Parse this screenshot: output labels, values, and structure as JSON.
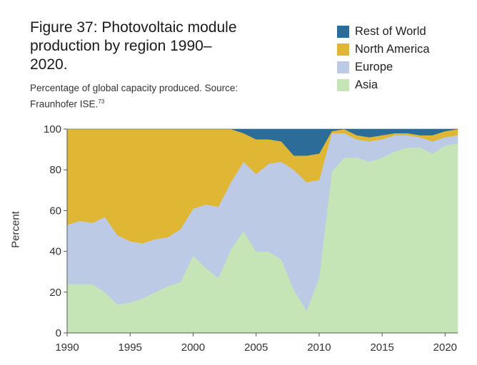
{
  "title": "Figure 37: Photovoltaic module production by region 1990–2020.",
  "subtitle": "Percentage of global capacity produced. Source: Fraunhofer ISE.",
  "subtitle_ref": "73",
  "chart_data": {
    "type": "area",
    "stacked": true,
    "ylabel": "Percent",
    "xlabel": "",
    "xlim": [
      1990,
      2021
    ],
    "ylim": [
      0,
      100
    ],
    "xticks": [
      "1990",
      "1995",
      "2000",
      "2005",
      "2010",
      "2015",
      "2020"
    ],
    "yticks": [
      "0",
      "20",
      "40",
      "60",
      "80",
      "100"
    ],
    "grid": false,
    "legend_position": "top-right",
    "x": [
      1990,
      1991,
      1992,
      1993,
      1994,
      1995,
      1996,
      1997,
      1998,
      1999,
      2000,
      2001,
      2002,
      2003,
      2004,
      2005,
      2006,
      2007,
      2008,
      2009,
      2010,
      2011,
      2012,
      2013,
      2014,
      2015,
      2016,
      2017,
      2018,
      2019,
      2020,
      2021
    ],
    "series": [
      {
        "name": "Asia",
        "color": "#c6e5b6",
        "values": [
          24,
          24,
          24,
          20,
          14,
          15,
          17,
          20,
          23,
          25,
          38,
          32,
          27,
          41,
          50,
          40,
          40,
          36,
          21,
          11,
          27,
          79,
          86,
          86,
          84,
          86,
          89,
          91,
          91,
          88,
          92,
          93
        ]
      },
      {
        "name": "Europe",
        "color": "#bccae6",
        "values": [
          29,
          31,
          30,
          37,
          34,
          30,
          27,
          26,
          24,
          26,
          23,
          31,
          35,
          33,
          34,
          38,
          43,
          48,
          59,
          63,
          48,
          19,
          12,
          9,
          10,
          9,
          8,
          6,
          5,
          6,
          4,
          4
        ]
      },
      {
        "name": "North America",
        "color": "#e0b734",
        "values": [
          47,
          45,
          46,
          43,
          52,
          55,
          56,
          54,
          53,
          49,
          39,
          37,
          38,
          26,
          14,
          17,
          12,
          10,
          7,
          13,
          13,
          1,
          2,
          2,
          2,
          2,
          1,
          1,
          1,
          3,
          3,
          3
        ]
      },
      {
        "name": "Rest of World",
        "color": "#2c6c98",
        "values": [
          0,
          0,
          0,
          0,
          0,
          0,
          0,
          0,
          0,
          0,
          0,
          0,
          0,
          0,
          2,
          5,
          5,
          6,
          13,
          13,
          12,
          1,
          0,
          3,
          4,
          3,
          2,
          2,
          3,
          3,
          1,
          0
        ]
      }
    ]
  }
}
